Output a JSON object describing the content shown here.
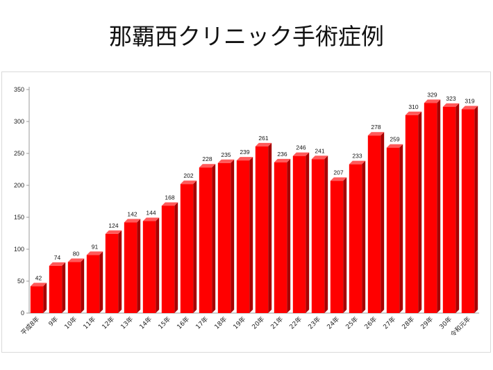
{
  "chart_data": {
    "type": "bar",
    "title": "那覇西クリニック手術症例",
    "categories": [
      "平成8年",
      "9年",
      "10年",
      "11年",
      "12年",
      "13年",
      "14年",
      "15年",
      "16年",
      "17年",
      "18年",
      "19年",
      "20年",
      "21年",
      "22年",
      "23年",
      "24年",
      "25年",
      "26年",
      "27年",
      "28年",
      "29年",
      "30年",
      "令和元年"
    ],
    "values": [
      42,
      74,
      80,
      91,
      124,
      142,
      144,
      168,
      202,
      228,
      235,
      239,
      261,
      236,
      246,
      241,
      207,
      233,
      278,
      259,
      310,
      329,
      323,
      319
    ],
    "ylim": [
      0,
      350
    ],
    "yticks": [
      0,
      50,
      100,
      150,
      200,
      250,
      300,
      350
    ],
    "grid": false,
    "legend": "none",
    "bar_color": "#ff0000",
    "bar_side_color": "#a80000",
    "bar_top_color": "#ff5a5a"
  }
}
